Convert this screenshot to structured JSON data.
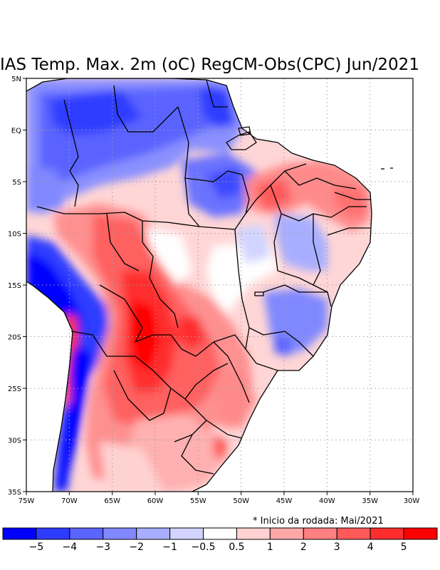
{
  "title": "IAS Temp. Max. 2m (oC) RegCM-Obs(CPC) Jun/2021",
  "note": "* Inicio da rodada: Mai/2021",
  "axes": {
    "lon_labels": [
      "75W",
      "70W",
      "65W",
      "60W",
      "55W",
      "50W",
      "45W",
      "40W",
      "35W",
      "30W"
    ],
    "lat_labels": [
      "5N",
      "EQ",
      "5S",
      "10S",
      "15S",
      "20S",
      "25S",
      "30S",
      "35S"
    ]
  },
  "colorbar": {
    "colors": [
      "#0000ff",
      "#2d3cff",
      "#5a64ff",
      "#8088ff",
      "#a8aeff",
      "#d2d4ff",
      "#ffffff",
      "#ffd2d2",
      "#ffa8a8",
      "#ff8080",
      "#ff5a5a",
      "#ff2d2d",
      "#ff0000"
    ],
    "labels": [
      "−5",
      "−4",
      "−3",
      "−2",
      "−1",
      "−0.5",
      "0.5",
      "1",
      "2",
      "3",
      "4",
      "5"
    ]
  }
}
